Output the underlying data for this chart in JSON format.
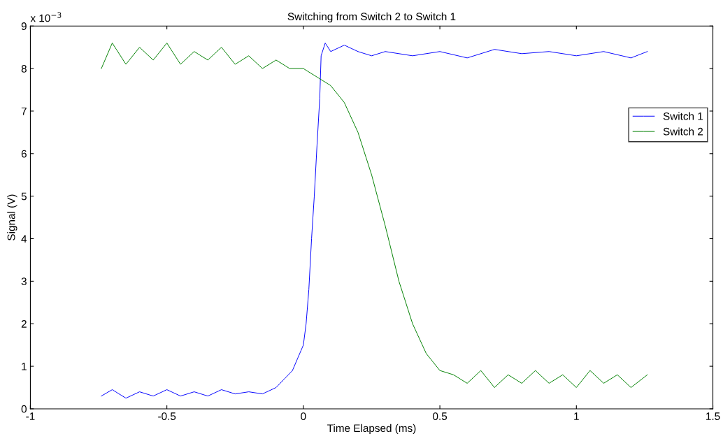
{
  "chart_data": {
    "type": "line",
    "title": "Switching from Switch 2 to Switch 1",
    "xlabel": "Time Elapsed (ms)",
    "ylabel": "Signal (V)",
    "annotations": [
      "x 10$^{−3}$"
    ],
    "xlim": [
      -1,
      1.5
    ],
    "xticks": [
      -1,
      -0.5,
      0,
      0.5,
      1,
      1.5
    ],
    "ylim": [
      0,
      9
    ],
    "yticks": [
      0,
      1,
      2,
      3,
      4,
      5,
      6,
      7,
      8,
      9
    ],
    "grid": false,
    "legend": "right",
    "marker": "none",
    "line_style": "solid",
    "series": [
      {
        "name": "Switch 1",
        "color": "#0000ff",
        "x": [
          -0.74,
          -0.7,
          -0.65,
          -0.6,
          -0.55,
          -0.5,
          -0.45,
          -0.4,
          -0.35,
          -0.3,
          -0.25,
          -0.2,
          -0.15,
          -0.1,
          -0.07,
          -0.04,
          -0.02,
          0,
          0.01,
          0.02,
          0.03,
          0.04,
          0.05,
          0.06,
          0.065,
          0.08,
          0.1,
          0.15,
          0.2,
          0.25,
          0.3,
          0.4,
          0.5,
          0.6,
          0.7,
          0.8,
          0.9,
          1.0,
          1.1,
          1.2,
          1.26
        ],
        "values": [
          0.3,
          0.45,
          0.25,
          0.4,
          0.3,
          0.45,
          0.3,
          0.4,
          0.3,
          0.45,
          0.35,
          0.4,
          0.35,
          0.5,
          0.7,
          0.9,
          1.2,
          1.5,
          2.0,
          2.8,
          4.0,
          5.0,
          6.2,
          7.3,
          8.3,
          8.6,
          8.4,
          8.55,
          8.4,
          8.3,
          8.4,
          8.3,
          8.4,
          8.25,
          8.45,
          8.35,
          8.4,
          8.3,
          8.4,
          8.25,
          8.4
        ]
      },
      {
        "name": "Switch 2",
        "color": "#008000",
        "x": [
          -0.74,
          -0.7,
          -0.65,
          -0.6,
          -0.55,
          -0.5,
          -0.45,
          -0.4,
          -0.35,
          -0.3,
          -0.25,
          -0.2,
          -0.15,
          -0.1,
          -0.05,
          0,
          0.05,
          0.1,
          0.15,
          0.2,
          0.25,
          0.3,
          0.35,
          0.4,
          0.45,
          0.5,
          0.55,
          0.6,
          0.65,
          0.7,
          0.75,
          0.8,
          0.85,
          0.9,
          0.95,
          1.0,
          1.05,
          1.1,
          1.15,
          1.2,
          1.26
        ],
        "values": [
          8.0,
          8.6,
          8.1,
          8.5,
          8.2,
          8.6,
          8.1,
          8.4,
          8.2,
          8.5,
          8.1,
          8.3,
          8.0,
          8.2,
          8.0,
          8.0,
          7.8,
          7.6,
          7.2,
          6.5,
          5.5,
          4.3,
          3.0,
          2.0,
          1.3,
          0.9,
          0.8,
          0.6,
          0.9,
          0.5,
          0.8,
          0.6,
          0.9,
          0.6,
          0.8,
          0.5,
          0.9,
          0.6,
          0.8,
          0.5,
          0.8
        ]
      }
    ]
  }
}
